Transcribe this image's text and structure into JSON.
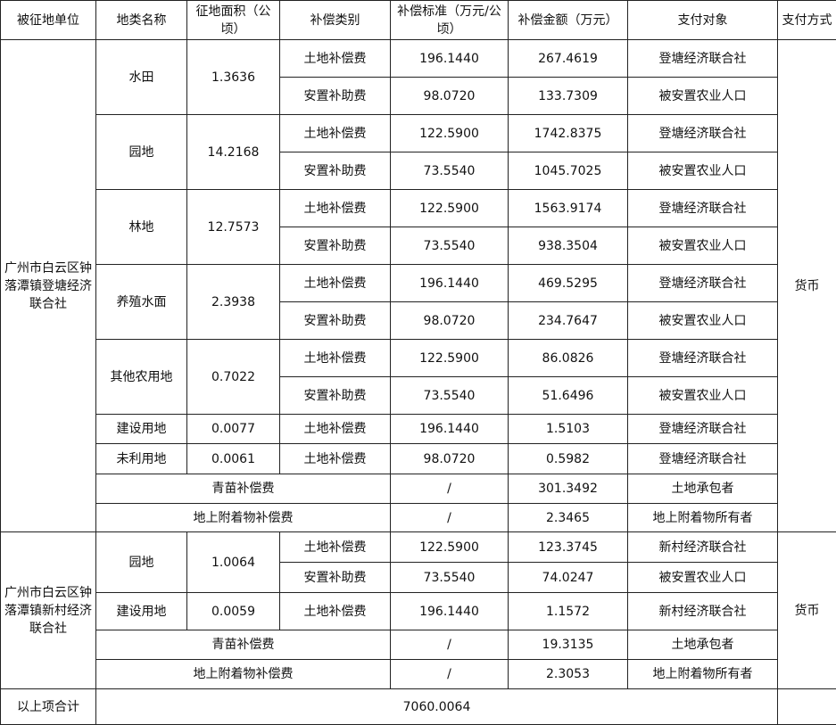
{
  "header": [
    "被征地单位",
    "地类名称",
    "征地面积（公顷）",
    "补偿类别",
    "补偿标准（万元/公顷）",
    "补偿金额（万元）",
    "支付对象",
    "支付方式"
  ],
  "groups": [
    {
      "unit": "广州市白云区钟落潭镇登塘经济联合社",
      "payment": "货币",
      "land_types": [
        {
          "name": "水田",
          "area": "1.3636",
          "items": [
            {
              "category": "土地补偿费",
              "standard": "196.1440",
              "amount": "267.4619",
              "payee": "登塘经济联合社"
            },
            {
              "category": "安置补助费",
              "standard": "98.0720",
              "amount": "133.7309",
              "payee": "被安置农业人口"
            }
          ]
        },
        {
          "name": "园地",
          "area": "14.2168",
          "items": [
            {
              "category": "土地补偿费",
              "standard": "122.5900",
              "amount": "1742.8375",
              "payee": "登塘经济联合社"
            },
            {
              "category": "安置补助费",
              "standard": "73.5540",
              "amount": "1045.7025",
              "payee": "被安置农业人口"
            }
          ]
        },
        {
          "name": "林地",
          "area": "12.7573",
          "items": [
            {
              "category": "土地补偿费",
              "standard": "122.5900",
              "amount": "1563.9174",
              "payee": "登塘经济联合社"
            },
            {
              "category": "安置补助费",
              "standard": "73.5540",
              "amount": "938.3504",
              "payee": "被安置农业人口"
            }
          ]
        },
        {
          "name": "养殖水面",
          "area": "2.3938",
          "items": [
            {
              "category": "土地补偿费",
              "standard": "196.1440",
              "amount": "469.5295",
              "payee": "登塘经济联合社"
            },
            {
              "category": "安置补助费",
              "standard": "98.0720",
              "amount": "234.7647",
              "payee": "被安置农业人口"
            }
          ]
        },
        {
          "name": "其他农用地",
          "area": "0.7022",
          "items": [
            {
              "category": "土地补偿费",
              "standard": "122.5900",
              "amount": "86.0826",
              "payee": "登塘经济联合社"
            },
            {
              "category": "安置补助费",
              "standard": "73.5540",
              "amount": "51.6496",
              "payee": "被安置农业人口"
            }
          ]
        },
        {
          "name": "建设用地",
          "area": "0.0077",
          "items": [
            {
              "category": "土地补偿费",
              "standard": "196.1440",
              "amount": "1.5103",
              "payee": "登塘经济联合社"
            }
          ]
        },
        {
          "name": "未利用地",
          "area": "0.0061",
          "items": [
            {
              "category": "土地补偿费",
              "standard": "98.0720",
              "amount": "0.5982",
              "payee": "登塘经济联合社"
            }
          ]
        }
      ],
      "extras": [
        {
          "name": "青苗补偿费",
          "standard": "/",
          "amount": "301.3492",
          "payee": "土地承包者"
        },
        {
          "name": "地上附着物补偿费",
          "standard": "/",
          "amount": "2.3465",
          "payee": "地上附着物所有者"
        }
      ]
    },
    {
      "unit": "广州市白云区钟落潭镇新村经济联合社",
      "payment": "货币",
      "land_types": [
        {
          "name": "园地",
          "area": "1.0064",
          "items": [
            {
              "category": "土地补偿费",
              "standard": "122.5900",
              "amount": "123.3745",
              "payee": "新村经济联合社"
            },
            {
              "category": "安置补助费",
              "standard": "73.5540",
              "amount": "74.0247",
              "payee": "被安置农业人口"
            }
          ]
        },
        {
          "name": "建设用地",
          "area": "0.0059",
          "items": [
            {
              "category": "土地补偿费",
              "standard": "196.1440",
              "amount": "1.1572",
              "payee": "新村经济联合社"
            }
          ]
        }
      ],
      "extras": [
        {
          "name": "青苗补偿费",
          "standard": "/",
          "amount": "19.3135",
          "payee": "土地承包者"
        },
        {
          "name": "地上附着物补偿费",
          "standard": "/",
          "amount": "2.3053",
          "payee": "地上附着物所有者"
        }
      ]
    }
  ],
  "total": {
    "label": "以上项合计",
    "value": "7060.0064"
  }
}
